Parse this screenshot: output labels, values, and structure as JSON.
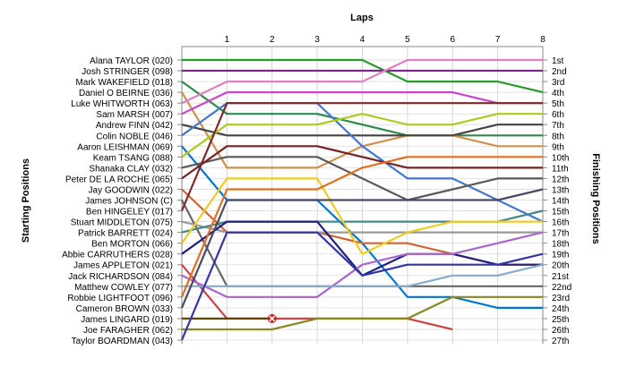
{
  "chart_data": {
    "type": "line",
    "title": "Laps",
    "ylabel_left": "Starting Positions",
    "ylabel_right": "Finishing Positions",
    "x": [
      1,
      2,
      3,
      4,
      5,
      6,
      7,
      8
    ],
    "x_ticks": [
      "1",
      "2",
      "3",
      "4",
      "5",
      "6",
      "7",
      "8"
    ],
    "position_labels": [
      "1st",
      "2nd",
      "3rd",
      "4th",
      "5th",
      "6th",
      "7th",
      "8th",
      "9th",
      "10th",
      "11th",
      "12th",
      "13th",
      "14th",
      "15th",
      "16th",
      "17th",
      "18th",
      "19th",
      "20th",
      "21st",
      "22nd",
      "23rd",
      "24th",
      "25th",
      "26th",
      "27th"
    ],
    "ylim": [
      1,
      27
    ],
    "grid": true,
    "series": [
      {
        "name": "Alana TAYLOR (020)",
        "color": "#2a9a2a",
        "start": 1,
        "positions": [
          1,
          1,
          1,
          1,
          3,
          3,
          3,
          4
        ]
      },
      {
        "name": "Josh STRINGER (098)",
        "color": "#7a2a8a",
        "start": 2,
        "positions": [
          2,
          2,
          2,
          2,
          2,
          2,
          2,
          2
        ]
      },
      {
        "name": "Mark WAKEFIELD (018)",
        "color": "#2d8a4d",
        "start": 3,
        "positions": [
          6,
          6,
          6,
          7,
          8,
          8,
          8,
          8
        ]
      },
      {
        "name": "Daniel O BEIRNE (036)",
        "color": "#d0904d",
        "start": 4,
        "positions": [
          11,
          11,
          11,
          9,
          8,
          8,
          9,
          9
        ]
      },
      {
        "name": "Luke WHITWORTH (063)",
        "color": "#e080c0",
        "start": 5,
        "positions": [
          3,
          3,
          3,
          3,
          1,
          1,
          1,
          1
        ]
      },
      {
        "name": "Sam MARSH (007)",
        "color": "#cc44cc",
        "start": 6,
        "positions": [
          4,
          4,
          4,
          4,
          4,
          4,
          5,
          5
        ]
      },
      {
        "name": "Andrew FINN (042)",
        "color": "#444444",
        "start": 7,
        "positions": [
          8,
          8,
          8,
          8,
          8,
          8,
          7,
          7
        ]
      },
      {
        "name": "Colin NOBLE (046)",
        "color": "#4477cc",
        "start": 8,
        "positions": [
          5,
          5,
          5,
          9,
          12,
          12,
          14,
          16
        ]
      },
      {
        "name": "Aaron LEISHMAN (069)",
        "color": "#0077cc",
        "start": 9,
        "positions": [
          14,
          14,
          14,
          18,
          23,
          23,
          24,
          24
        ]
      },
      {
        "name": "Keam TSANG (088)",
        "color": "#aacc22",
        "start": 10,
        "positions": [
          7,
          7,
          7,
          6,
          7,
          7,
          6,
          6
        ]
      },
      {
        "name": "Shanaka CLAY (032)",
        "color": "#5a5a5a",
        "start": 11,
        "positions": [
          10,
          10,
          10,
          12,
          14,
          13,
          12,
          12
        ]
      },
      {
        "name": "Peter DE LA ROCHE (065)",
        "color": "#772222",
        "start": 12,
        "positions": [
          9,
          9,
          9,
          10,
          11,
          11,
          11,
          11
        ]
      },
      {
        "name": "Jay GOODWIN (022)",
        "color": "#cc6633",
        "start": 13,
        "positions": [
          17,
          17,
          17,
          18,
          18,
          19,
          20,
          20
        ]
      },
      {
        "name": "James JOHNSON (C)",
        "color": "#666666",
        "start": 14,
        "positions": [
          22,
          22,
          22,
          22,
          22,
          22,
          22,
          22
        ]
      },
      {
        "name": "Ben HINGELEY (017)",
        "color": "#7a2a2a",
        "start": 15,
        "positions": [
          5,
          5,
          5,
          5,
          5,
          5,
          5,
          5
        ]
      },
      {
        "name": "Stuart MIDDLETON (075)",
        "color": "#999999",
        "start": 16,
        "positions": [
          17,
          17,
          17,
          17,
          17,
          17,
          17,
          17
        ]
      },
      {
        "name": "Patrick BARRETT (024)",
        "color": "#448888",
        "start": 17,
        "positions": [
          16,
          16,
          16,
          16,
          16,
          16,
          16,
          15
        ]
      },
      {
        "name": "Ben MORTON (066)",
        "color": "#eecc22",
        "start": 18,
        "positions": [
          12,
          12,
          12,
          19,
          17,
          16,
          16,
          16
        ]
      },
      {
        "name": "Abbie CARRUTHERS (028)",
        "color": "#202080",
        "start": 19,
        "positions": [
          16,
          16,
          16,
          21,
          19,
          19,
          20,
          20
        ]
      },
      {
        "name": "James APPLETON (021)",
        "color": "#cc4444",
        "start": 20,
        "positions": [
          25,
          25,
          25,
          25,
          25,
          26
        ]
      },
      {
        "name": "Jack RICHARDSON (084)",
        "color": "#aa66cc",
        "start": 21,
        "positions": [
          23,
          23,
          23,
          20,
          19,
          19,
          18,
          17
        ]
      },
      {
        "name": "Matthew COWLEY (077)",
        "color": "#88aacc",
        "start": 22,
        "positions": [
          22,
          22,
          22,
          22,
          22,
          21,
          21,
          20
        ]
      },
      {
        "name": "Robbie LIGHTFOOT (096)",
        "color": "#e07020",
        "start": 23,
        "positions": [
          13,
          13,
          13,
          11,
          10,
          10,
          10,
          10
        ]
      },
      {
        "name": "Cameron BROWN (033)",
        "color": "#4a4a66",
        "start": 24,
        "positions": [
          14,
          14,
          14,
          14,
          14,
          14,
          14,
          13
        ]
      },
      {
        "name": "James LINGARD (019)",
        "color": "#664400",
        "start": 25,
        "positions": [
          25,
          25
        ]
      },
      {
        "name": "Joe FARAGHER (062)",
        "color": "#888822",
        "start": 26,
        "positions": [
          26,
          26,
          25,
          25,
          25,
          23,
          23,
          23
        ]
      },
      {
        "name": "Taylor BOARDMAN (043)",
        "color": "#3333aa",
        "start": 27,
        "positions": [
          17,
          17,
          17,
          21,
          20,
          20,
          20,
          19
        ]
      }
    ],
    "retired_marker": {
      "series": "James LINGARD (019)",
      "lap": 2,
      "position": 25
    }
  }
}
